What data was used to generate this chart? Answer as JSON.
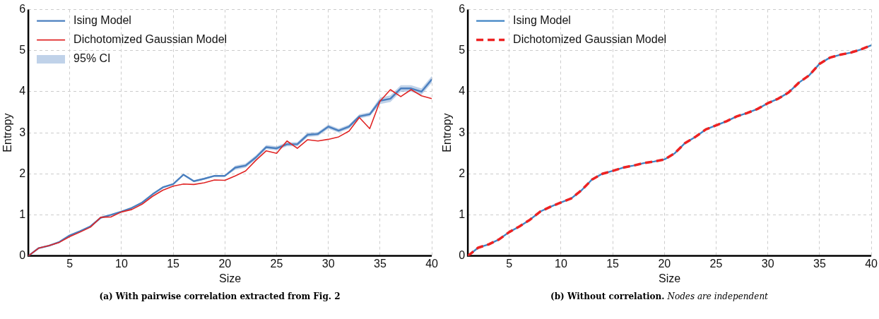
{
  "chart_data": [
    {
      "type": "line",
      "title": "(a) With pairwise correlation extracted from Fig. 2",
      "xlabel": "Size",
      "ylabel": "Entropy",
      "xlim": [
        1,
        40
      ],
      "xticks": [
        5,
        10,
        15,
        20,
        25,
        30,
        35,
        40
      ],
      "ylim": [
        0,
        6
      ],
      "yticks": [
        0,
        1,
        2,
        3,
        4,
        5,
        6
      ],
      "grid": true,
      "legend": "top left",
      "x": [
        1,
        2,
        3,
        4,
        5,
        6,
        7,
        8,
        9,
        10,
        11,
        12,
        13,
        14,
        15,
        16,
        17,
        18,
        19,
        20,
        21,
        22,
        23,
        24,
        25,
        26,
        27,
        28,
        29,
        30,
        31,
        32,
        33,
        34,
        35,
        36,
        37,
        38,
        39,
        40
      ],
      "series": [
        {
          "name": "Ising Model",
          "color": "#4a7fbf",
          "line_style": "solid",
          "values": [
            0,
            0.19,
            0.25,
            0.34,
            0.5,
            0.6,
            0.72,
            0.93,
            1.0,
            1.08,
            1.17,
            1.3,
            1.5,
            1.67,
            1.75,
            1.98,
            1.82,
            1.88,
            1.95,
            1.95,
            2.15,
            2.2,
            2.4,
            2.65,
            2.62,
            2.72,
            2.72,
            2.95,
            2.97,
            3.15,
            3.05,
            3.15,
            3.4,
            3.45,
            3.78,
            3.83,
            4.08,
            4.08,
            4.0,
            4.3
          ],
          "lower": [
            0,
            0.17,
            0.23,
            0.32,
            0.48,
            0.58,
            0.7,
            0.91,
            0.98,
            1.06,
            1.15,
            1.28,
            1.48,
            1.65,
            1.73,
            1.96,
            1.8,
            1.86,
            1.93,
            1.93,
            2.1,
            2.15,
            2.35,
            2.6,
            2.57,
            2.67,
            2.67,
            2.9,
            2.92,
            3.1,
            3.0,
            3.1,
            3.35,
            3.4,
            3.7,
            3.75,
            4.0,
            4.0,
            3.92,
            4.22
          ],
          "upper": [
            0,
            0.21,
            0.27,
            0.36,
            0.52,
            0.62,
            0.74,
            0.95,
            1.02,
            1.1,
            1.19,
            1.32,
            1.52,
            1.69,
            1.77,
            2.0,
            1.84,
            1.9,
            1.97,
            1.97,
            2.2,
            2.25,
            2.45,
            2.7,
            2.67,
            2.77,
            2.77,
            3.0,
            3.02,
            3.2,
            3.1,
            3.2,
            3.45,
            3.5,
            3.86,
            3.91,
            4.16,
            4.16,
            4.08,
            4.38
          ]
        },
        {
          "name": "Dichotomized Gaussian Model",
          "color": "#e02424",
          "line_style": "solid",
          "values": [
            0,
            0.19,
            0.25,
            0.33,
            0.47,
            0.58,
            0.7,
            0.94,
            0.95,
            1.07,
            1.13,
            1.26,
            1.45,
            1.6,
            1.7,
            1.75,
            1.74,
            1.78,
            1.85,
            1.84,
            1.95,
            2.07,
            2.33,
            2.56,
            2.5,
            2.8,
            2.62,
            2.83,
            2.8,
            2.84,
            2.9,
            3.04,
            3.37,
            3.1,
            3.77,
            4.05,
            3.88,
            4.05,
            3.9,
            3.83
          ]
        }
      ],
      "annotations": [
        "95% CI"
      ]
    },
    {
      "type": "line",
      "title": "(b) Without correlation.",
      "subtitle": "Nodes are independent",
      "xlabel": "Size",
      "ylabel": "Entropy",
      "xlim": [
        1,
        40
      ],
      "xticks": [
        5,
        10,
        15,
        20,
        25,
        30,
        35,
        40
      ],
      "ylim": [
        0,
        6
      ],
      "yticks": [
        0,
        1,
        2,
        3,
        4,
        5,
        6
      ],
      "grid": true,
      "legend": "top left",
      "x": [
        1,
        2,
        3,
        4,
        5,
        6,
        7,
        8,
        9,
        10,
        11,
        12,
        13,
        14,
        15,
        16,
        17,
        18,
        19,
        20,
        21,
        22,
        23,
        24,
        25,
        26,
        27,
        28,
        29,
        30,
        31,
        32,
        33,
        34,
        35,
        36,
        37,
        38,
        39,
        40
      ],
      "series": [
        {
          "name": "Ising Model",
          "color": "#3f84c4",
          "line_style": "solid",
          "values": [
            0,
            0.2,
            0.28,
            0.4,
            0.58,
            0.72,
            0.88,
            1.08,
            1.2,
            1.3,
            1.4,
            1.6,
            1.86,
            2.0,
            2.07,
            2.15,
            2.2,
            2.26,
            2.3,
            2.35,
            2.5,
            2.75,
            2.9,
            3.08,
            3.18,
            3.28,
            3.4,
            3.48,
            3.58,
            3.72,
            3.83,
            3.98,
            4.22,
            4.4,
            4.68,
            4.83,
            4.9,
            4.95,
            5.03,
            5.13
          ]
        },
        {
          "name": "Dichotomized Gaussian Model",
          "color": "#ee2222",
          "line_style": "dashed",
          "values": [
            0,
            0.2,
            0.28,
            0.4,
            0.58,
            0.72,
            0.88,
            1.08,
            1.2,
            1.3,
            1.4,
            1.6,
            1.86,
            2.0,
            2.07,
            2.15,
            2.2,
            2.26,
            2.3,
            2.35,
            2.5,
            2.75,
            2.9,
            3.08,
            3.18,
            3.28,
            3.4,
            3.48,
            3.58,
            3.72,
            3.83,
            3.98,
            4.22,
            4.4,
            4.68,
            4.83,
            4.9,
            4.95,
            5.03,
            5.13
          ]
        }
      ]
    }
  ]
}
